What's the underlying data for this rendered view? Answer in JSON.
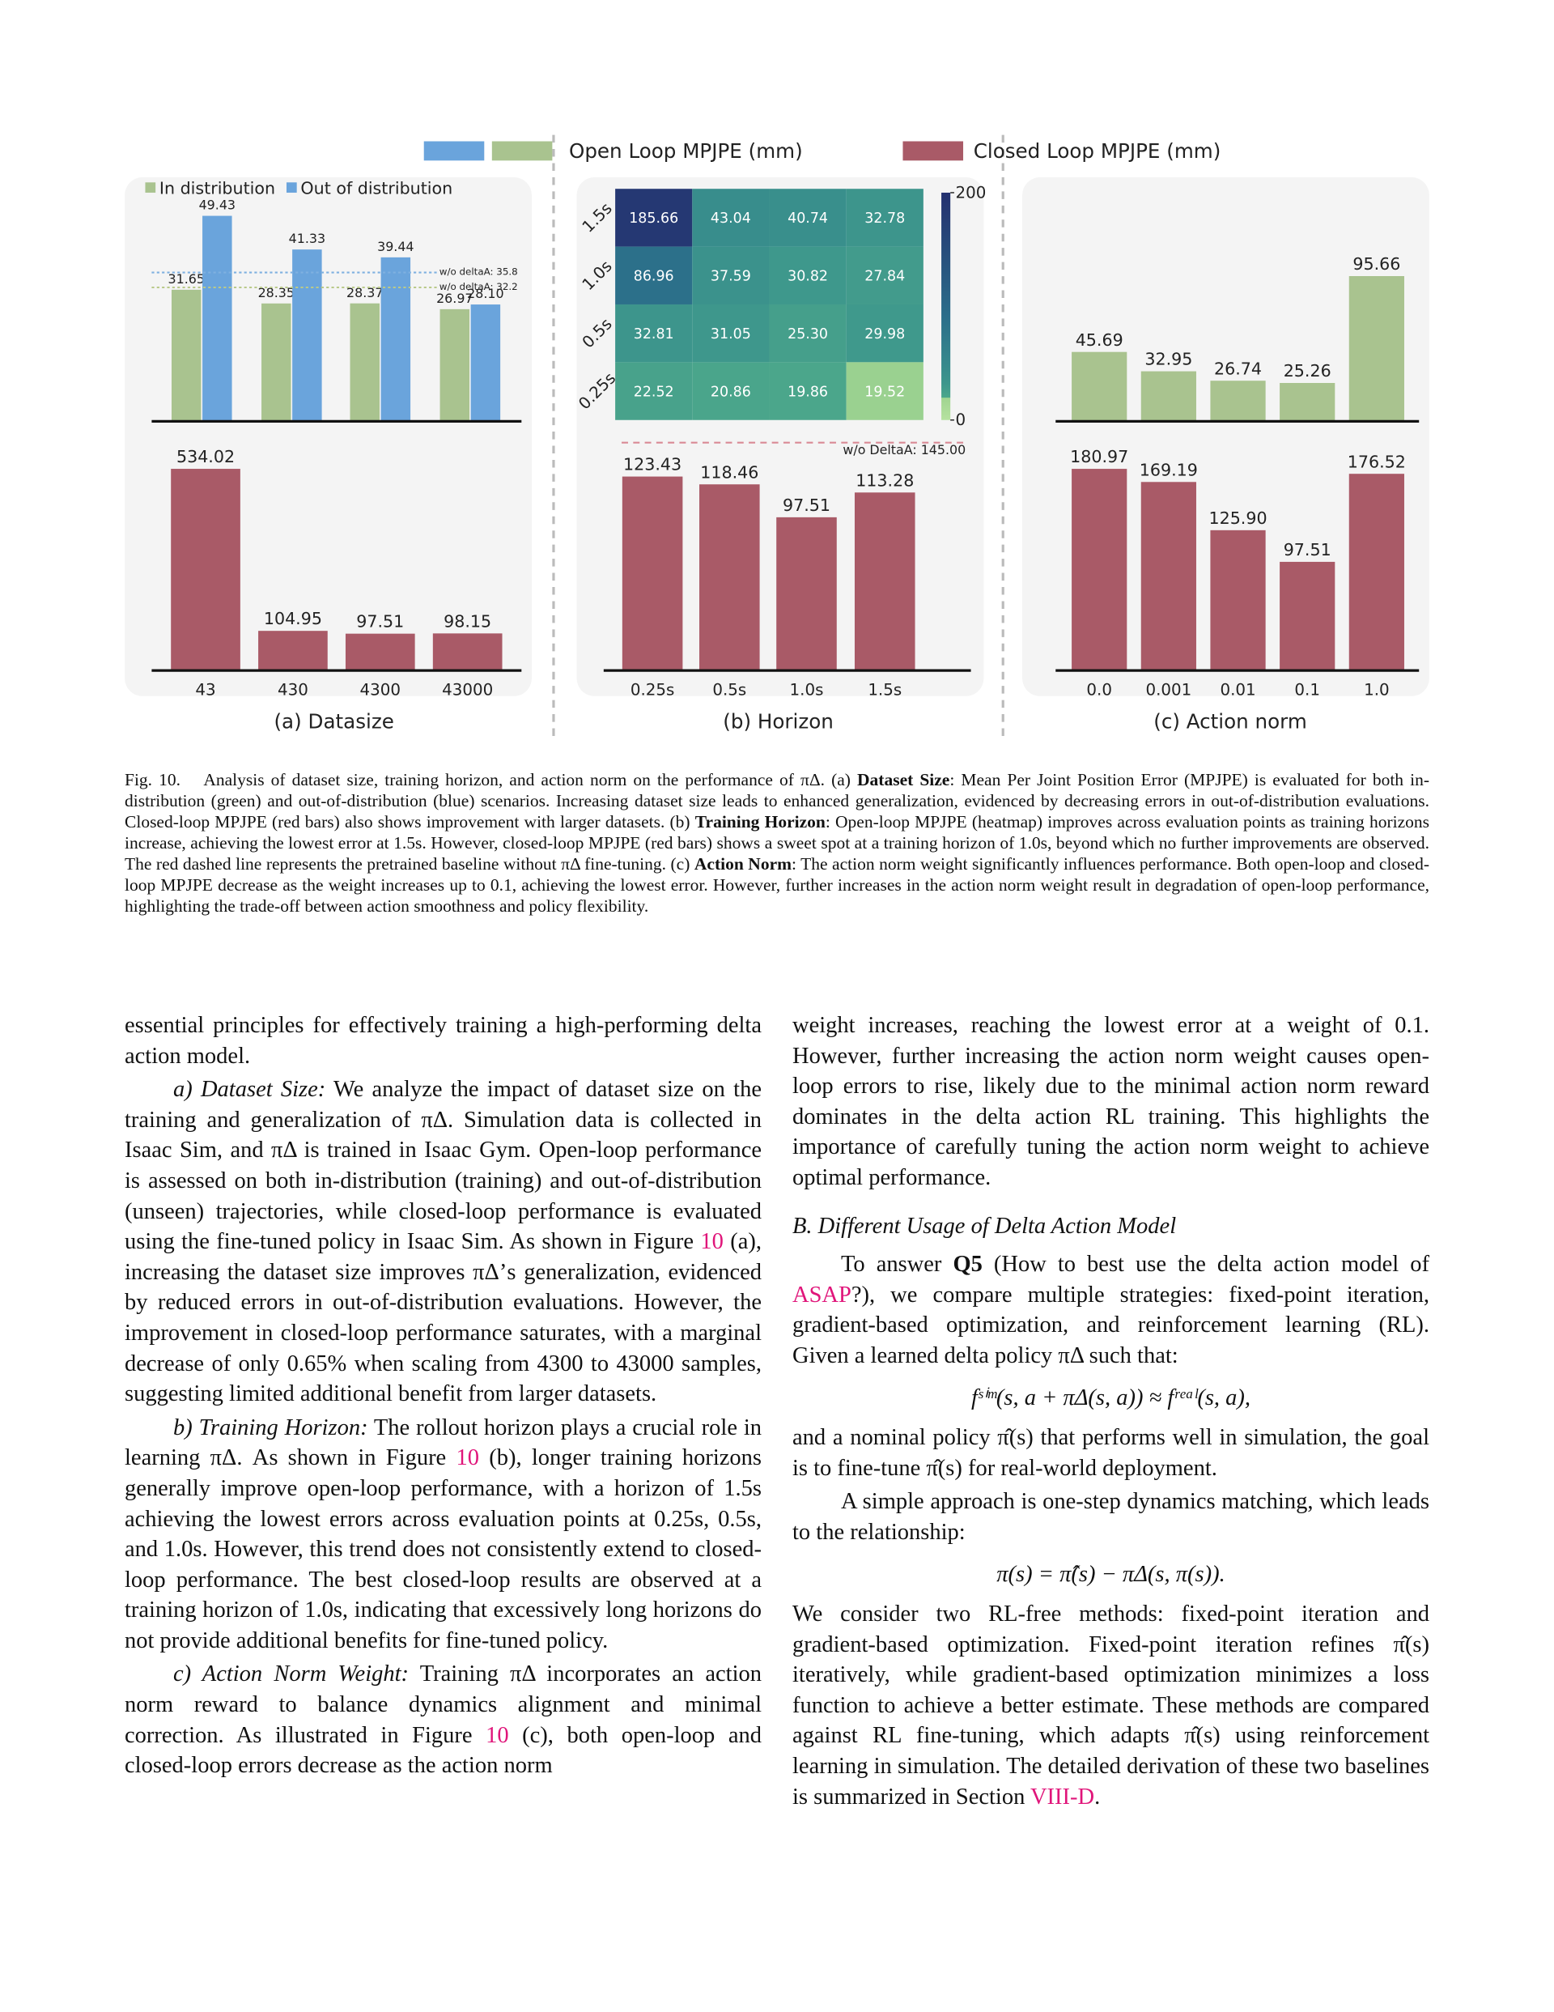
{
  "figure": {
    "legend": [
      {
        "name": "Open Loop MPJPE (mm)",
        "colors": [
          "#6aa4dc",
          "#a9c38f"
        ]
      },
      {
        "name": "Closed Loop MPJPE (mm)",
        "colors": [
          "#a95a67"
        ]
      }
    ],
    "panels": [
      {
        "caption": "(a) Datasize",
        "open": {
          "type": "bar",
          "ylim": [
            0,
            55
          ],
          "series": [
            {
              "name": "In distribution",
              "color": "#a9c38f",
              "values": [
                31.65,
                28.35,
                28.37,
                26.97
              ],
              "value_labels": [
                "31.65",
                "28.35",
                "28.37",
                "26.97"
              ]
            },
            {
              "name": "Out of distribution",
              "color": "#6aa4dc",
              "values": [
                49.43,
                41.33,
                39.44,
                28.1
              ],
              "value_labels": [
                "49.43",
                "41.33",
                "39.44",
                "28.10"
              ]
            }
          ],
          "reference_lines": [
            {
              "label": "w/o deltaA: 35.8",
              "value": 35.8,
              "color": "#7fb0e0"
            },
            {
              "label": "w/o deltaA: 32.2",
              "value": 32.2,
              "color": "#b9c98a"
            }
          ]
        },
        "closed": {
          "type": "bar",
          "ylim": [
            0,
            600
          ],
          "color": "#a95a67",
          "categories": [
            "43",
            "430",
            "4300",
            "43000"
          ],
          "values": [
            534.02,
            104.95,
            97.51,
            98.15
          ],
          "value_labels": [
            "534.02",
            "104.95",
            "97.51",
            "98.15"
          ]
        }
      },
      {
        "caption": "(b) Horizon",
        "open": {
          "type": "heatmap",
          "rows": [
            "1.5s",
            "1.0s",
            "0.5s",
            "0.25s"
          ],
          "values": [
            [
              185.66,
              43.04,
              40.74,
              32.78
            ],
            [
              86.96,
              37.59,
              30.82,
              27.84
            ],
            [
              32.81,
              31.05,
              25.3,
              29.98
            ],
            [
              22.52,
              20.86,
              19.86,
              19.52
            ]
          ],
          "value_labels": [
            [
              "185.66",
              "43.04",
              "40.74",
              "32.78"
            ],
            [
              "86.96",
              "37.59",
              "30.82",
              "27.84"
            ],
            [
              "32.81",
              "31.05",
              "25.30",
              "29.98"
            ],
            [
              "22.52",
              "20.86",
              "19.86",
              "19.52"
            ]
          ],
          "colorbar": {
            "lim": [
              0,
              200
            ],
            "ticks": [
              0,
              200
            ]
          }
        },
        "closed": {
          "type": "bar",
          "ylim": [
            0,
            150
          ],
          "color": "#a95a67",
          "categories": [
            "0.25s",
            "0.5s",
            "1.0s",
            "1.5s"
          ],
          "values": [
            123.43,
            118.46,
            97.51,
            113.28
          ],
          "value_labels": [
            "123.43",
            "118.46",
            "97.51",
            "113.28"
          ],
          "reference_lines": [
            {
              "label": "w/o DeltaA: 145.00",
              "value": 145,
              "color": "#d98a95"
            }
          ]
        }
      },
      {
        "caption": "(c) Action norm",
        "open": {
          "type": "bar",
          "ylim": [
            0,
            110
          ],
          "color": "#a9c38f",
          "values": [
            45.69,
            32.95,
            26.74,
            25.26,
            95.66
          ],
          "value_labels": [
            "45.69",
            "32.95",
            "26.74",
            "25.26",
            "95.66"
          ]
        },
        "closed": {
          "type": "bar",
          "ylim": [
            0,
            200
          ],
          "color": "#a95a67",
          "categories": [
            "0.0",
            "0.001",
            "0.01",
            "0.1",
            "1.0"
          ],
          "values": [
            180.97,
            169.19,
            125.9,
            97.51,
            176.52
          ],
          "value_labels": [
            "180.97",
            "169.19",
            "125.90",
            "97.51",
            "176.52"
          ]
        }
      }
    ],
    "caption": [
      "Fig. 10.  Analysis of dataset size, training horizon, and action norm on the performance of πΔ. (a) ",
      "Dataset Size",
      ": Mean Per Joint Position Error (MPJPE) is evaluated for both in-distribution (green) and out-of-distribution (blue) scenarios. Increasing dataset size leads to enhanced generalization, evidenced by decreasing errors in out-of-distribution evaluations. Closed-loop MPJPE (red bars) also shows improvement with larger datasets. (b) ",
      "Training Horizon",
      ": Open-loop MPJPE (heatmap) improves across evaluation points as training horizons increase, achieving the lowest error at 1.5s. However, closed-loop MPJPE (red bars) shows a sweet spot at a training horizon of 1.0s, beyond which no further improvements are observed. The red dashed line represents the pretrained baseline without πΔ fine-tuning. (c) ",
      "Action Norm",
      ": The action norm weight significantly influences performance. Both open-loop and closed-loop MPJPE decrease as the weight increases up to 0.1, achieving the lowest error. However, further increases in the action norm weight result in degradation of open-loop performance, highlighting the trade-off between action smoothness and policy flexibility."
    ]
  },
  "body": {
    "left": [
      [
        "essential principles for effectively training a high-performing delta action model."
      ],
      [
        "a) Dataset Size:",
        " We analyze the impact of dataset size on the training and generalization of πΔ. Simulation data is collected in Isaac Sim, and πΔ is trained in Isaac Gym. Open-loop performance is assessed on both in-distribution (training) and out-of-distribution (unseen) trajectories, while closed-loop performance is evaluated using the fine-tuned policy in Isaac Sim. As shown in Figure ",
        "10",
        " (a), increasing the dataset size improves πΔ’s generalization, evidenced by reduced errors in out-of-distribution evaluations. However, the improvement in closed-loop performance saturates, with a marginal decrease of only 0.65% when scaling from 4300 to 43000 samples, suggesting limited additional benefit from larger datasets."
      ],
      [
        "b) Training Horizon:",
        " The rollout horizon plays a crucial role in learning πΔ. As shown in Figure ",
        "10",
        " (b), longer training horizons generally improve open-loop performance, with a horizon of 1.5s achieving the lowest errors across evaluation points at 0.25s, 0.5s, and 1.0s. However, this trend does not consistently extend to closed-loop performance. The best closed-loop results are observed at a training horizon of 1.0s, indicating that excessively long horizons do not provide additional benefits for fine-tuned policy."
      ],
      [
        "c) Action Norm Weight:",
        " Training πΔ incorporates an action norm reward to balance dynamics alignment and minimal correction. As illustrated in Figure ",
        "10",
        " (c), both open-loop and closed-loop errors decrease as the action norm"
      ]
    ],
    "right": {
      "intro": "weight increases, reaching the lowest error at a weight of 0.1. However, further increasing the action norm weight causes open-loop errors to rise, likely due to the minimal action norm reward dominates in the delta action RL training. This highlights the importance of carefully tuning the action norm weight to achieve optimal performance.",
      "heading": "B.  Different Usage of Delta Action Model",
      "p1": [
        "To answer ",
        "Q5",
        " (How to best use the delta action model of ",
        "ASAP",
        "?), we compare multiple strategies: fixed-point iteration, gradient-based optimization, and reinforcement learning (RL). Given a learned delta policy πΔ such that:"
      ],
      "eq1": "fˢⁱᵐ(s, a + πΔ(s, a)) ≈ fʳᵉᵃˡ(s, a),",
      "p2": "and a nominal policy π̂(s) that performs well in simulation, the goal is to fine-tune π̂(s) for real-world deployment.",
      "p3": "A simple approach is one-step dynamics matching, which leads to the relationship:",
      "eq2": "π(s) = π̂(s) − πΔ(s, π(s)).",
      "p4": [
        "We consider two RL-free methods: fixed-point iteration and gradient-based optimization. Fixed-point iteration refines π̂(s) iteratively, while gradient-based optimization minimizes a loss function to achieve a better estimate. These methods are compared against RL fine-tuning, which adapts π̂(s) using reinforcement learning in simulation. The detailed derivation of these two baselines is summarized in Section ",
        "VIII-D",
        "."
      ]
    }
  }
}
